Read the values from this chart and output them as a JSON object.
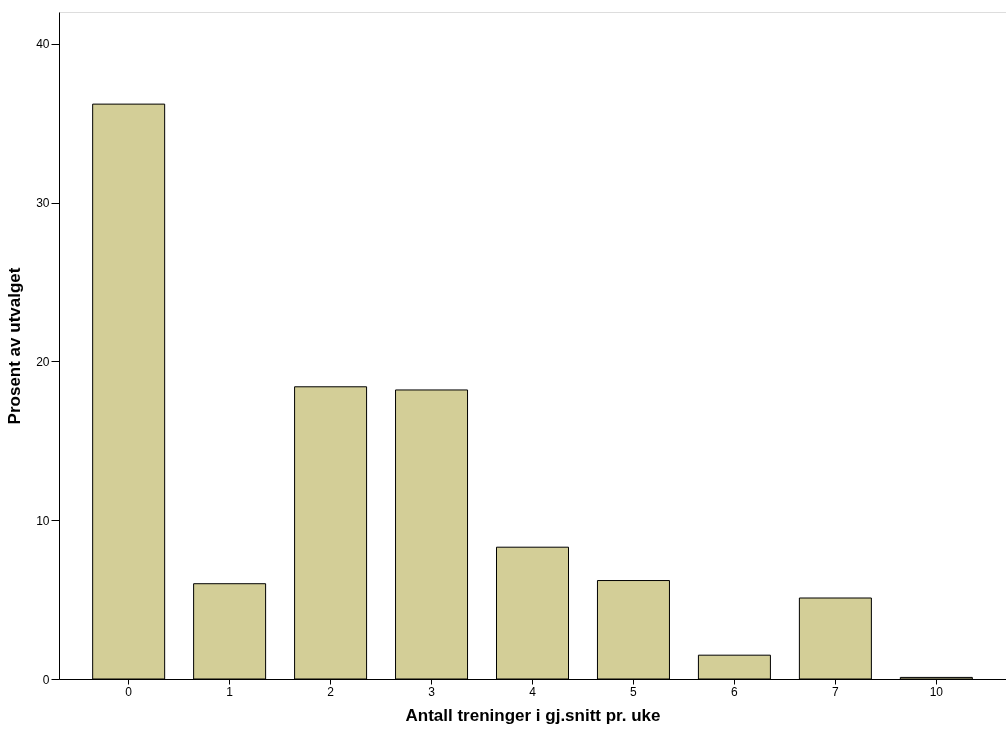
{
  "chart_data": {
    "type": "bar",
    "xlabel": "Antall treninger i gj.snitt pr. uke",
    "ylabel": "Prosent av utvalget",
    "categories": [
      "0",
      "1",
      "2",
      "3",
      "4",
      "5",
      "6",
      "7",
      "10"
    ],
    "values": [
      36.2,
      6.0,
      18.4,
      18.2,
      8.3,
      6.2,
      1.5,
      5.1,
      0.1
    ],
    "color": "#d3ce97",
    "ylim": [
      0,
      42
    ],
    "yticks": [
      0,
      10,
      20,
      30,
      40
    ],
    "grid": false
  }
}
